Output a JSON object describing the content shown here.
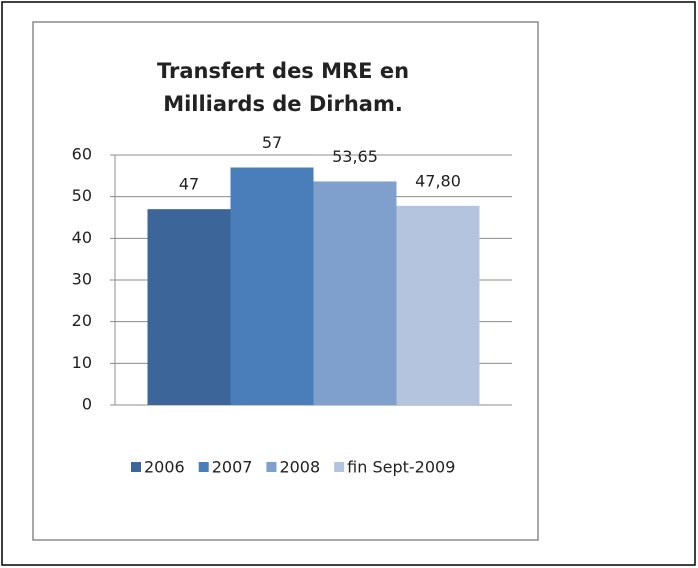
{
  "chart_data": {
    "type": "bar",
    "title": [
      "Transfert des MRE en",
      "Milliards de Dirham."
    ],
    "categories": [
      null
    ],
    "series": [
      {
        "name": "2006",
        "color": "#3c6699",
        "values": [
          47
        ],
        "value_labels": [
          "47"
        ]
      },
      {
        "name": "2007",
        "color": "#4a7ebb",
        "values": [
          57
        ],
        "value_labels": [
          "57"
        ]
      },
      {
        "name": "2008",
        "color": "#7f9fcc",
        "values": [
          53.65
        ],
        "value_labels": [
          "53,65"
        ]
      },
      {
        "name": "fin Sept-2009",
        "color": "#b4c4df",
        "values": [
          47.8
        ],
        "value_labels": [
          "47,80"
        ]
      }
    ],
    "ylim": [
      0,
      60
    ],
    "yticks": [
      0,
      10,
      20,
      30,
      40,
      50,
      60
    ],
    "grid": true,
    "legend": "bottom"
  }
}
